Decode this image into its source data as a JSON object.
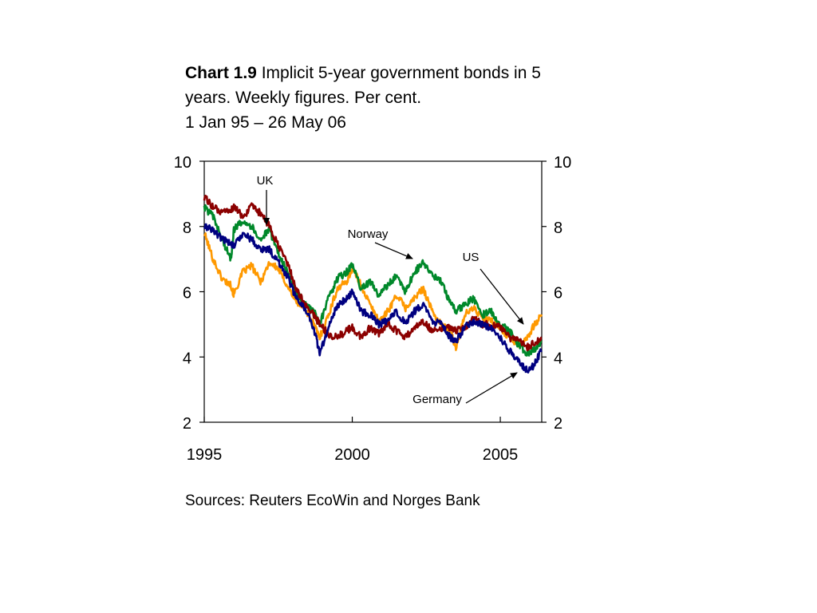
{
  "title": {
    "number": "Chart 1.9",
    "line1": "Implicit 5-year government bonds in 5",
    "line2": "years. Weekly figures. Per cent.",
    "line3": "1 Jan 95 – 26 May 06"
  },
  "source": "Sources: Reuters EcoWin and Norges Bank",
  "annotations": {
    "uk": "UK",
    "norway": "Norway",
    "us": "US",
    "germany": "Germany"
  },
  "chart_data": {
    "type": "line",
    "title": "Implicit 5-year government bonds in 5 years. Weekly figures. Per cent.",
    "xlabel": "",
    "ylabel": "",
    "xlim": [
      1995.0,
      2006.4
    ],
    "ylim": [
      2,
      10
    ],
    "x_ticks": [
      "1995",
      "2000",
      "2005"
    ],
    "y_ticks_left": [
      "10",
      "8",
      "6",
      "4",
      "2"
    ],
    "y_ticks_right": [
      "10",
      "8",
      "6",
      "4",
      "2"
    ],
    "grid": false,
    "legend": "none",
    "series": [
      {
        "name": "US",
        "color": "#ff9900",
        "x": [
          1995.0,
          1995.3,
          1995.6,
          1995.9,
          1996.0,
          1996.3,
          1996.6,
          1996.9,
          1997.2,
          1997.5,
          1997.8,
          1998.1,
          1998.4,
          1998.7,
          1998.9,
          1999.2,
          1999.5,
          1999.8,
          2000.0,
          2000.3,
          2000.6,
          2000.9,
          2001.2,
          2001.5,
          2001.8,
          2002.1,
          2002.4,
          2002.7,
          2003.0,
          2003.3,
          2003.5,
          2003.8,
          2004.1,
          2004.4,
          2004.7,
          2005.0,
          2005.3,
          2005.6,
          2005.9,
          2006.1,
          2006.4
        ],
        "values": [
          7.8,
          7.0,
          6.4,
          6.2,
          5.9,
          6.6,
          6.8,
          6.3,
          6.9,
          6.7,
          6.2,
          5.7,
          5.5,
          5.0,
          4.6,
          5.3,
          6.1,
          6.3,
          6.7,
          6.2,
          5.6,
          5.1,
          5.4,
          5.9,
          5.5,
          5.8,
          6.1,
          5.4,
          5.0,
          4.8,
          4.3,
          5.3,
          5.5,
          5.2,
          5.1,
          4.9,
          4.6,
          4.4,
          4.6,
          4.9,
          5.3
        ]
      },
      {
        "name": "Norway",
        "color": "#00882a",
        "x": [
          1995.0,
          1995.3,
          1995.6,
          1995.9,
          1996.0,
          1996.3,
          1996.6,
          1996.9,
          1997.2,
          1997.5,
          1997.8,
          1998.1,
          1998.4,
          1998.7,
          1998.9,
          1999.2,
          1999.5,
          1999.8,
          2000.0,
          2000.3,
          2000.6,
          2000.9,
          2001.2,
          2001.5,
          2001.8,
          2002.1,
          2002.4,
          2002.7,
          2003.0,
          2003.3,
          2003.5,
          2003.8,
          2004.1,
          2004.4,
          2004.7,
          2005.0,
          2005.3,
          2005.6,
          2005.9,
          2006.1,
          2006.4
        ],
        "values": [
          8.6,
          8.3,
          7.6,
          7.0,
          7.9,
          8.2,
          8.0,
          7.6,
          7.9,
          7.2,
          6.6,
          6.0,
          5.6,
          5.4,
          5.0,
          5.8,
          6.4,
          6.6,
          6.8,
          6.1,
          6.3,
          5.9,
          6.2,
          6.5,
          6.0,
          6.6,
          6.9,
          6.5,
          6.3,
          5.7,
          5.4,
          5.6,
          5.8,
          5.3,
          5.4,
          5.0,
          4.8,
          4.4,
          4.1,
          4.2,
          4.5
        ]
      },
      {
        "name": "UK",
        "color": "#8b0000",
        "x": [
          1995.0,
          1995.3,
          1995.6,
          1995.9,
          1996.0,
          1996.3,
          1996.6,
          1996.9,
          1997.2,
          1997.5,
          1997.8,
          1998.1,
          1998.4,
          1998.7,
          1998.9,
          1999.2,
          1999.5,
          1999.8,
          2000.0,
          2000.3,
          2000.6,
          2000.9,
          2001.2,
          2001.5,
          2001.8,
          2002.1,
          2002.4,
          2002.7,
          2003.0,
          2003.3,
          2003.5,
          2003.8,
          2004.1,
          2004.4,
          2004.7,
          2005.0,
          2005.3,
          2005.6,
          2005.9,
          2006.1,
          2006.4
        ],
        "values": [
          8.9,
          8.6,
          8.4,
          8.5,
          8.6,
          8.3,
          8.6,
          8.4,
          8.0,
          7.4,
          6.9,
          6.1,
          5.6,
          5.3,
          5.0,
          4.7,
          4.6,
          4.8,
          4.9,
          4.6,
          4.9,
          4.7,
          5.0,
          4.8,
          4.6,
          4.9,
          5.1,
          4.8,
          4.9,
          4.9,
          4.8,
          4.9,
          5.2,
          5.0,
          5.0,
          4.9,
          4.6,
          4.5,
          4.3,
          4.4,
          4.6
        ]
      },
      {
        "name": "Germany",
        "color": "#000080",
        "x": [
          1995.0,
          1995.3,
          1995.6,
          1995.9,
          1996.0,
          1996.3,
          1996.6,
          1996.9,
          1997.2,
          1997.5,
          1997.8,
          1998.1,
          1998.4,
          1998.7,
          1998.9,
          1999.2,
          1999.5,
          1999.8,
          2000.0,
          2000.3,
          2000.6,
          2000.9,
          2001.2,
          2001.5,
          2001.8,
          2002.1,
          2002.4,
          2002.7,
          2003.0,
          2003.3,
          2003.5,
          2003.8,
          2004.1,
          2004.4,
          2004.7,
          2005.0,
          2005.3,
          2005.6,
          2005.9,
          2006.1,
          2006.4
        ],
        "values": [
          8.0,
          7.9,
          7.6,
          7.5,
          7.4,
          7.8,
          7.6,
          7.3,
          7.3,
          6.9,
          6.5,
          5.8,
          5.5,
          4.9,
          4.1,
          4.9,
          5.6,
          5.8,
          6.0,
          5.4,
          5.3,
          5.0,
          5.1,
          5.4,
          5.0,
          5.4,
          5.6,
          5.1,
          5.0,
          4.6,
          4.5,
          4.9,
          5.1,
          5.0,
          4.9,
          4.6,
          4.2,
          3.9,
          3.6,
          3.7,
          4.2
        ]
      }
    ]
  }
}
